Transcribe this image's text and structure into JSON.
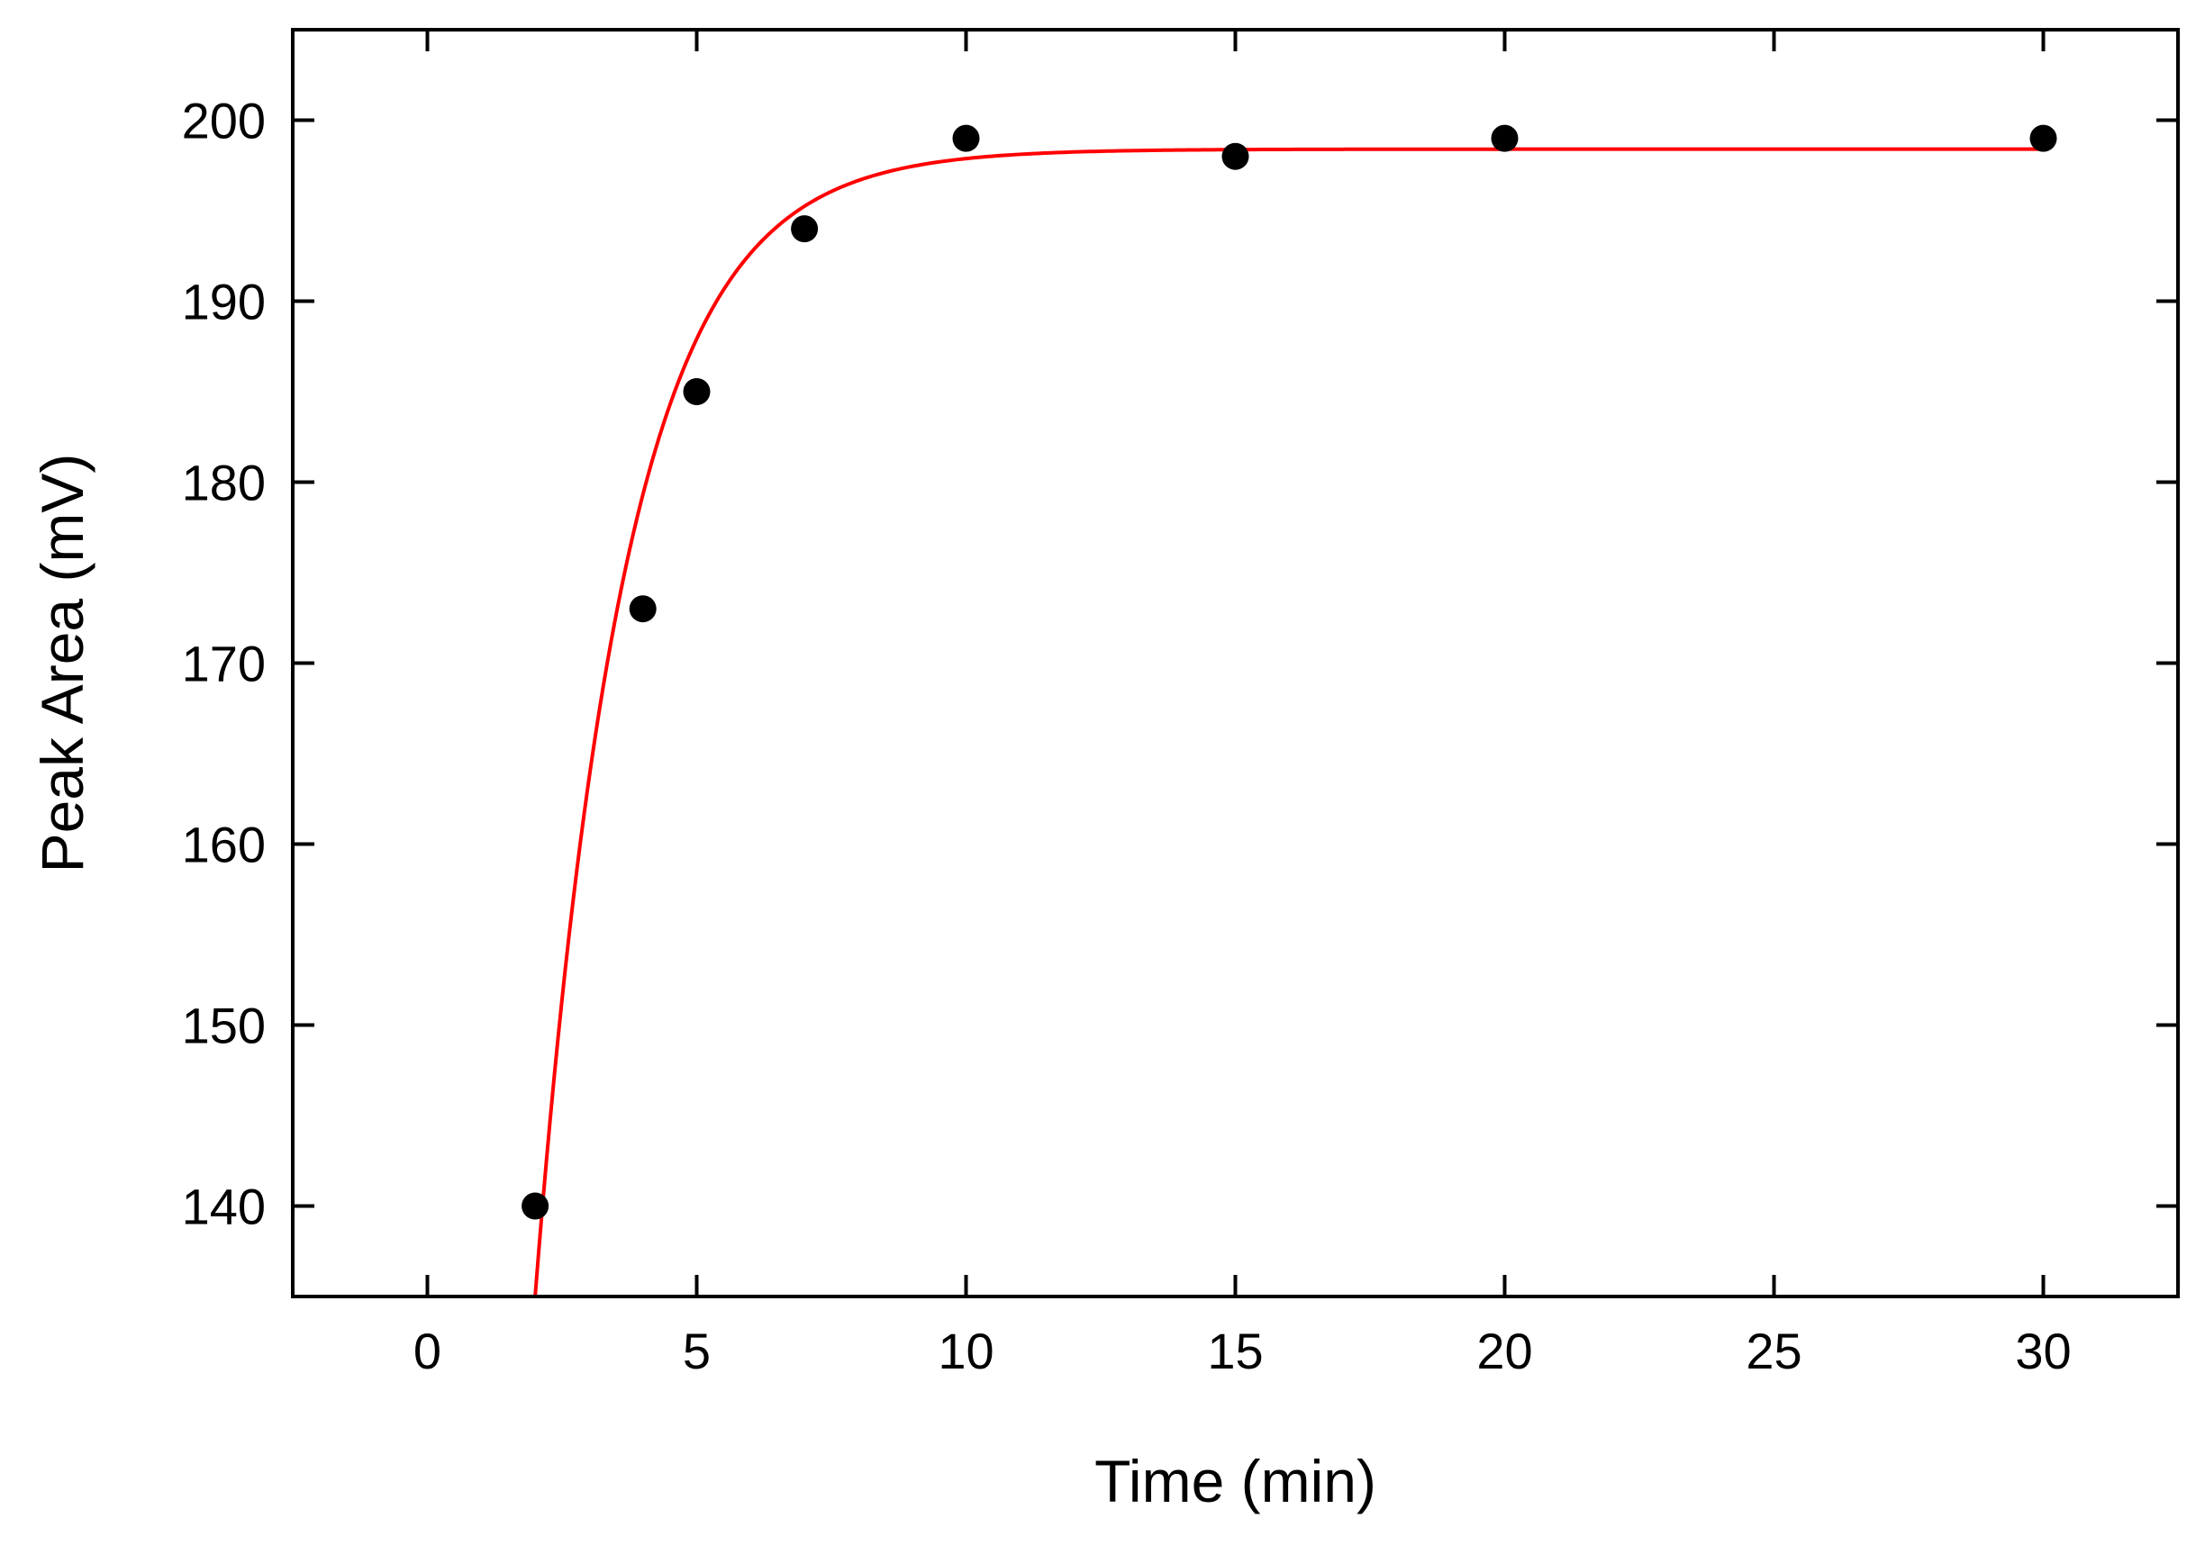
{
  "chart_data": {
    "type": "scatter",
    "title": "",
    "xlabel": "Time (min)",
    "ylabel": "Peak Area (mV)",
    "xlim": [
      -2.5,
      32.5
    ],
    "ylim": [
      135,
      205
    ],
    "xticks": [
      0,
      5,
      10,
      15,
      20,
      25,
      30
    ],
    "yticks": [
      140,
      150,
      160,
      170,
      180,
      190,
      200
    ],
    "grid": false,
    "legend": "none",
    "series": [
      {
        "kind": "points",
        "color": "#000000",
        "x": [
          2,
          4,
          5,
          7,
          10,
          15,
          20,
          30
        ],
        "y": [
          140,
          173,
          185,
          194,
          199,
          198,
          199,
          199
        ]
      },
      {
        "kind": "fit-curve",
        "color": "#ff0000",
        "model": "exponential rise to maximum",
        "x_range": [
          2.0,
          30.0
        ],
        "plateau": 198.4,
        "at_x2": 135.0,
        "rate_per_min": 0.6
      }
    ]
  }
}
